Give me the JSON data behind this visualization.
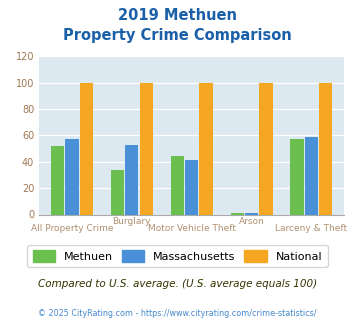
{
  "title_line1": "2019 Methuen",
  "title_line2": "Property Crime Comparison",
  "categories": [
    "All Property Crime",
    "Burglary",
    "Motor Vehicle Theft",
    "Arson",
    "Larceny & Theft"
  ],
  "x_labels_top": [
    "",
    "Burglary",
    "",
    "Arson",
    ""
  ],
  "x_labels_bottom": [
    "All Property Crime",
    "",
    "Motor Vehicle Theft",
    "",
    "Larceny & Theft"
  ],
  "methuen": [
    52,
    34,
    44,
    1,
    57
  ],
  "massachusetts": [
    57,
    53,
    41,
    1,
    59
  ],
  "national": [
    100,
    100,
    100,
    100,
    100
  ],
  "bar_colors": {
    "methuen": "#6bbf4e",
    "massachusetts": "#4a90d9",
    "national": "#f5a623"
  },
  "ylim": [
    0,
    120
  ],
  "yticks": [
    0,
    20,
    40,
    60,
    80,
    100,
    120
  ],
  "title_color": "#1a5fa8",
  "xlabel_color": "#b09070",
  "yticklabel_color": "#a07850",
  "legend_labels": [
    "Methuen",
    "Massachusetts",
    "National"
  ],
  "footnote1": "Compared to U.S. average. (U.S. average equals 100)",
  "footnote2": "© 2025 CityRating.com - https://www.cityrating.com/crime-statistics/",
  "footnote1_color": "#333300",
  "footnote2_color": "#4488cc",
  "plot_bg_color": "#dce9f0",
  "grid_color": "#ffffff",
  "bar_width": 0.22,
  "title_fontsize": 10.5,
  "legend_fontsize": 8.0,
  "footnote1_fontsize": 7.5,
  "footnote2_fontsize": 5.8
}
